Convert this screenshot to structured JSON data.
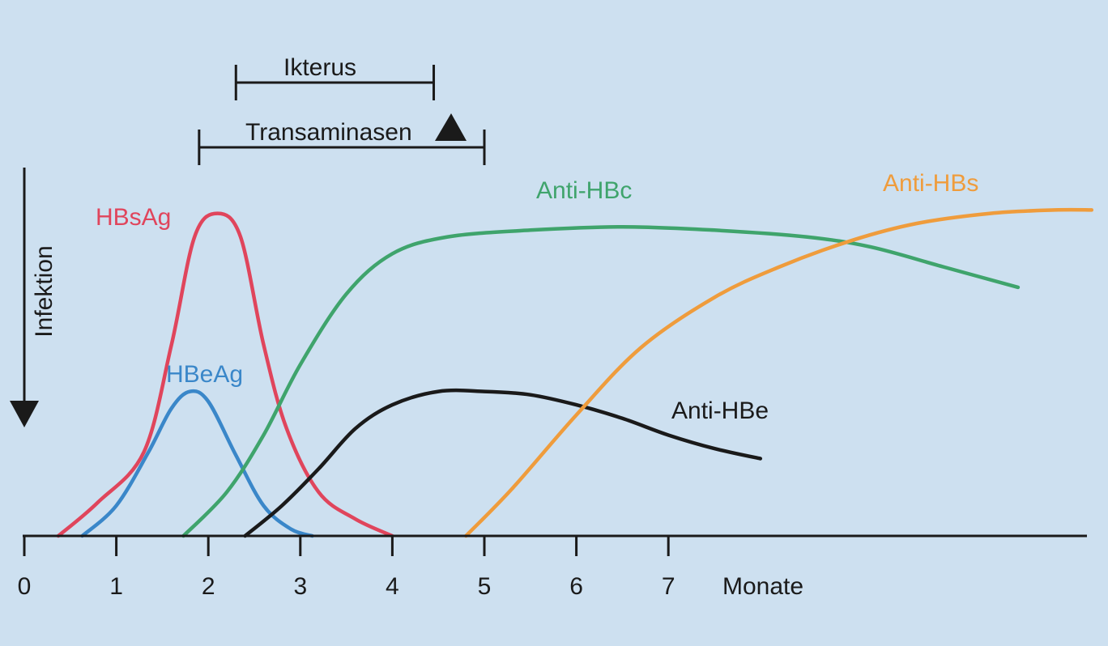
{
  "chart_data": {
    "type": "line",
    "xlabel": "Monate",
    "x_ticks": [
      "0",
      "1",
      "2",
      "3",
      "4",
      "5",
      "6",
      "7"
    ],
    "xlim": [
      0,
      11.6
    ],
    "ylim": [
      0,
      1.0
    ],
    "y_axis_visible": false,
    "grid": false,
    "series": [
      {
        "name": "HBsAg",
        "color": "#e0455c",
        "x": [
          0.37,
          0.8,
          1.3,
          1.6,
          1.85,
          2.1,
          2.35,
          2.6,
          2.85,
          3.2,
          3.6,
          4.0
        ],
        "y": [
          0.0,
          0.1,
          0.25,
          0.57,
          0.89,
          0.96,
          0.89,
          0.57,
          0.32,
          0.13,
          0.05,
          0.0
        ]
      },
      {
        "name": "HBeAg",
        "color": "#3a87c9",
        "x": [
          0.63,
          1.0,
          1.35,
          1.6,
          1.8,
          2.0,
          2.3,
          2.6,
          2.9,
          3.13
        ],
        "y": [
          0.0,
          0.09,
          0.25,
          0.38,
          0.43,
          0.4,
          0.24,
          0.09,
          0.02,
          0.0
        ]
      },
      {
        "name": "Anti-HBc",
        "color": "#3fa46c",
        "x": [
          1.73,
          2.2,
          2.6,
          3.0,
          3.5,
          4.0,
          4.6,
          5.5,
          6.5,
          7.5,
          8.5,
          9.2,
          10.0,
          10.8
        ],
        "y": [
          0.0,
          0.13,
          0.3,
          0.51,
          0.72,
          0.84,
          0.89,
          0.91,
          0.92,
          0.91,
          0.89,
          0.86,
          0.8,
          0.74
        ]
      },
      {
        "name": "Anti-HBe",
        "color": "#1a1a1a",
        "x": [
          2.4,
          2.8,
          3.2,
          3.6,
          4.0,
          4.5,
          5.0,
          5.5,
          6.0,
          6.5,
          7.0,
          7.5,
          8.0
        ],
        "y": [
          0.0,
          0.09,
          0.2,
          0.32,
          0.39,
          0.43,
          0.43,
          0.42,
          0.39,
          0.35,
          0.3,
          0.26,
          0.23
        ]
      },
      {
        "name": "Anti-HBs",
        "color": "#ef9c3c",
        "x": [
          4.8,
          5.3,
          6.0,
          6.7,
          7.5,
          8.2,
          9.0,
          9.7,
          10.5,
          11.2,
          11.6
        ],
        "y": [
          0.0,
          0.14,
          0.36,
          0.56,
          0.71,
          0.8,
          0.88,
          0.93,
          0.96,
          0.97,
          0.97
        ]
      }
    ],
    "annotations": [
      {
        "type": "arrow",
        "text": "Infektion",
        "x": 0
      },
      {
        "type": "interval",
        "text": "Ikterus",
        "x_start": 2.3,
        "x_end": 4.45
      },
      {
        "type": "interval",
        "text": "Transaminasen",
        "x_start": 1.9,
        "x_end": 5.0
      }
    ]
  }
}
